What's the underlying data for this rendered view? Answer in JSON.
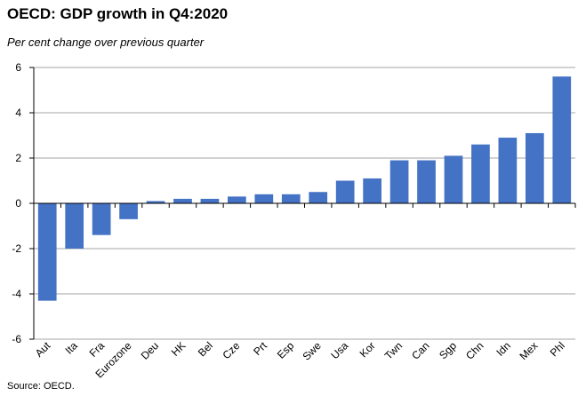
{
  "title": "OECD: GDP growth in Q4:2020",
  "subtitle": "Per cent change over previous quarter",
  "source": "Source: OECD.",
  "colors": {
    "bar": "#4472C4",
    "grid": "#a6a6a6",
    "axis": "#000000"
  },
  "chart_data": {
    "type": "bar",
    "title": "OECD: GDP growth in Q4:2020",
    "subtitle": "Per cent change over previous quarter",
    "xlabel": "",
    "ylabel": "",
    "ylim": [
      -6,
      6
    ],
    "yticks": [
      -6,
      -4,
      -2,
      0,
      2,
      4,
      6
    ],
    "grid": true,
    "legend": "none",
    "categories": [
      "Aut",
      "Ita",
      "Fra",
      "Eurozone",
      "Deu",
      "HK",
      "Bel",
      "Cze",
      "Prt",
      "Esp",
      "Swe",
      "Usa",
      "Kor",
      "Twn",
      "Can",
      "Sgp",
      "Chn",
      "Idn",
      "Mex",
      "Phl"
    ],
    "values": [
      -4.3,
      -2.0,
      -1.4,
      -0.7,
      0.1,
      0.2,
      0.2,
      0.3,
      0.4,
      0.4,
      0.5,
      1.0,
      1.1,
      1.9,
      1.9,
      2.1,
      2.6,
      2.9,
      3.1,
      5.6
    ]
  }
}
